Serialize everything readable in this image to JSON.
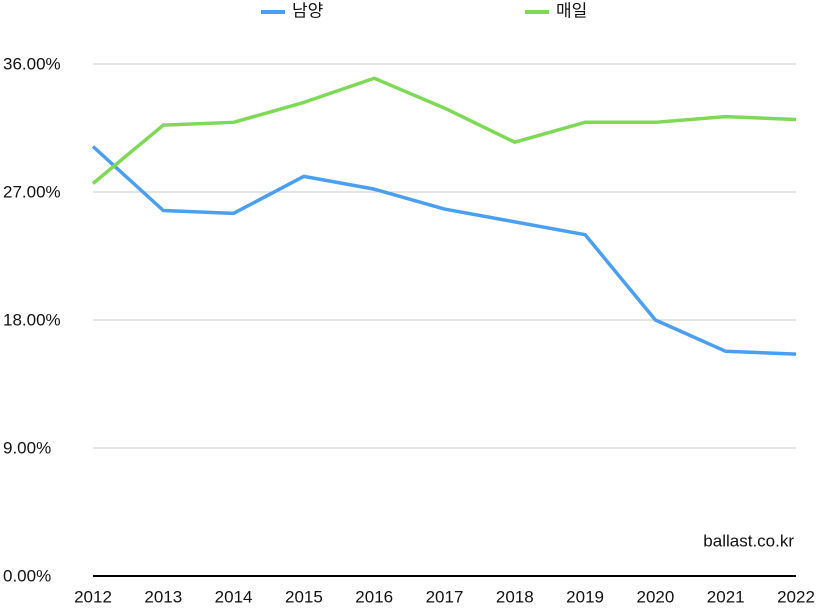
{
  "chart_data": {
    "type": "line",
    "categories": [
      "2012",
      "2013",
      "2014",
      "2015",
      "2016",
      "2017",
      "2018",
      "2019",
      "2020",
      "2021",
      "2022"
    ],
    "series": [
      {
        "name": "남양",
        "color": "#4a9ff0",
        "values": [
          30.2,
          25.7,
          25.5,
          28.1,
          27.2,
          25.8,
          24.9,
          24.0,
          18.0,
          15.8,
          15.6
        ]
      },
      {
        "name": "매일",
        "color": "#7ed957",
        "values": [
          27.6,
          31.7,
          31.9,
          33.3,
          35.0,
          32.9,
          30.5,
          31.9,
          31.9,
          32.3,
          32.1
        ]
      }
    ],
    "ylim": [
      0,
      36
    ],
    "yticks": [
      {
        "value": 0,
        "label": "0.00%"
      },
      {
        "value": 9,
        "label": "9.00%"
      },
      {
        "value": 18,
        "label": "18.00%"
      },
      {
        "value": 27,
        "label": "27.00%"
      },
      {
        "value": 36,
        "label": "36.00%"
      }
    ],
    "grid": true,
    "legend": "top",
    "annotation": "ballast.co.kr"
  }
}
